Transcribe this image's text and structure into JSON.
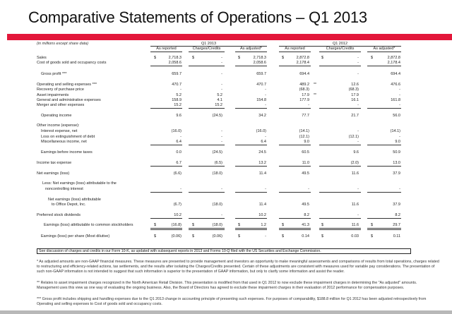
{
  "title": "Comparative Statements of Operations – Q1 2013",
  "units_note": "(in millions except share data)",
  "groups": [
    "Q1 2013",
    "Q1 2012"
  ],
  "subheaders": [
    "As reported",
    "Charges/Credits",
    "As adjusted*",
    "As reported",
    "Charges/Credits",
    "As adjusted*"
  ],
  "rows": [
    {
      "label": "Sales",
      "values": [
        "2,718.3",
        "-",
        "2,718.3",
        "2,872.8",
        "-",
        "2,872.8"
      ],
      "dollar": true
    },
    {
      "label": "Cost of goods sold and occupancy costs",
      "values": [
        "2,058.6",
        "-",
        "2,058.6",
        "2,178.4",
        "-",
        "2,178.4"
      ]
    },
    {
      "label": "Gross profit ***",
      "values": [
        "659.7",
        "-",
        "659.7",
        "694.4",
        "-",
        "694.4"
      ]
    },
    {
      "label": "Operating and selling expenses ***",
      "values": [
        "470.7",
        "-",
        "470.7",
        "489.2",
        "12.6",
        "476.6"
      ],
      "mark": "**"
    },
    {
      "label": "Recovery of purchase price",
      "values": [
        "-",
        "-",
        "-",
        "(68.3)",
        "(68.3)",
        "-"
      ]
    },
    {
      "label": "Asset impairments",
      "values": [
        "5.2",
        "5.2",
        "-",
        "17.9",
        "17.9",
        "-"
      ],
      "mark": "**"
    },
    {
      "label": "General and administrative expenses",
      "values": [
        "158.9",
        "4.1",
        "154.8",
        "177.9",
        "16.1",
        "161.8"
      ]
    },
    {
      "label": "Merger and other expenses",
      "values": [
        "15.2",
        "15.2",
        "-",
        "-",
        "-",
        "-"
      ]
    },
    {
      "label": "Operating income",
      "values": [
        "9.6",
        "(24.5)",
        "34.2",
        "77.7",
        "21.7",
        "56.0"
      ]
    },
    {
      "label": "Other income (expense):",
      "values": []
    },
    {
      "label": "Interest expense, net",
      "values": [
        "(16.0)",
        "-",
        "(16.0)",
        "(14.1)",
        "-",
        "(14.1)"
      ]
    },
    {
      "label": "Loss on extinguishment of debt",
      "values": [
        "-",
        "-",
        "-",
        "(12.1)",
        "(12.1)",
        "-"
      ]
    },
    {
      "label": "Miscellaneous income, net",
      "values": [
        "6.4",
        "-",
        "6.4",
        "9.0",
        "-",
        "9.0"
      ]
    },
    {
      "label": "Earnings before income taxes",
      "values": [
        "0.0",
        "(24.5)",
        "24.5",
        "60.5",
        "9.6",
        "50.9"
      ]
    },
    {
      "label": "Income tax expense",
      "values": [
        "6.7",
        "(6.5)",
        "13.2",
        "11.0",
        "(2.0)",
        "13.0"
      ]
    },
    {
      "label": "Net earnings (loss)",
      "values": [
        "(6.6)",
        "(18.0)",
        "11.4",
        "49.5",
        "11.6",
        "37.9"
      ]
    },
    {
      "label": "Less: Net earnings (loss) attributable to the",
      "values": []
    },
    {
      "label": "noncontrolling interest",
      "values": [
        "-",
        "-",
        "-",
        "-",
        "-",
        "-"
      ]
    },
    {
      "label": "Net earnings (loss) attributable",
      "values": []
    },
    {
      "label": "to Office Depot, Inc.",
      "values": [
        "(6.7)",
        "(18.0)",
        "11.4",
        "49.5",
        "11.6",
        "37.9"
      ]
    },
    {
      "label": "Preferred stock dividends",
      "values": [
        "10.2",
        "-",
        "10.2",
        "8.2",
        "-",
        "8.2"
      ]
    },
    {
      "label": "Earnings (loss) attributable to common stockholders",
      "values": [
        "(16.8)",
        "(18.0)",
        "1.2",
        "41.3",
        "11.6",
        "29.7"
      ],
      "dollar": true
    },
    {
      "label": "Earnings (loss) per share (Most dilutive)",
      "values": [
        "(0.06)",
        "(0.06)",
        "-",
        "0.14",
        "0.03",
        "0.11"
      ],
      "dollar": true
    }
  ],
  "currency_symbol": "$",
  "note_box": "See discussion of charges and credits in our Form 10-K, as updated with subsequent reports in 2013 and Forms 10-Q filed with the US Securities and Exchange Commission.",
  "footnotes": [
    "* As adjusted amounts are non-GAAP financial measures. These measures are presented to provide management and investors an opportunity to make meaningful assessments and comparisons of results from total operations, charges related to restructuring and efficiency-related actions, tax settlements, and the results after isolating the Charges/Credits presented. Certain of these adjustments are consistent with measures used for variable pay considerations. The presentation of such non-GAAP information is not intended to suggest that such information is superior to the presentation of GAAP information, but only to clarify some information and assist the reader.",
    "** Relates to asset impairment charges recognized in the North American Retail Division. This presentation is modified from that used in Q1 2012 to now exclude these impairment charges in determining the \"As adjusted\" amounts. Management uses this view as one way of evaluating the ongoing business. Also, the Board of Directors has agreed to exclude these impairment charges in their evaluation of 2012 performance for compensation purposes.",
    "*** Gross profit includes shipping and handling expenses due to the Q1 2013 change in accounting principle of presenting such expenses. For purposes of comparability, $188.8 million for Q1 2012 has been adjusted retrospectively from Operating and selling expenses to Cost of goods sold and occupancy costs."
  ]
}
